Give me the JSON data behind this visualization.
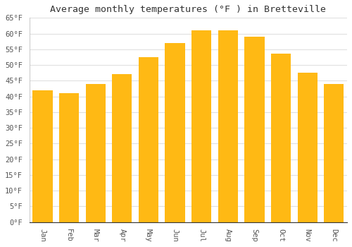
{
  "title": "Average monthly temperatures (°F ) in Bretteville",
  "months": [
    "Jan",
    "Feb",
    "Mar",
    "Apr",
    "May",
    "Jun",
    "Jul",
    "Aug",
    "Sep",
    "Oct",
    "Nov",
    "Dec"
  ],
  "values": [
    42,
    41,
    44,
    47,
    52.5,
    57,
    61,
    61,
    59,
    53.5,
    47.5,
    44
  ],
  "bar_color_center": "#FFB914",
  "bar_color_edge": "#FFCC44",
  "ylim": [
    0,
    65
  ],
  "yticks": [
    0,
    5,
    10,
    15,
    20,
    25,
    30,
    35,
    40,
    45,
    50,
    55,
    60,
    65
  ],
  "ytick_labels": [
    "0°F",
    "5°F",
    "10°F",
    "15°F",
    "20°F",
    "25°F",
    "30°F",
    "35°F",
    "40°F",
    "45°F",
    "50°F",
    "55°F",
    "60°F",
    "65°F"
  ],
  "bg_color": "#ffffff",
  "grid_color": "#e0e0e0",
  "title_fontsize": 9.5,
  "tick_fontsize": 7.5,
  "font_family": "monospace"
}
